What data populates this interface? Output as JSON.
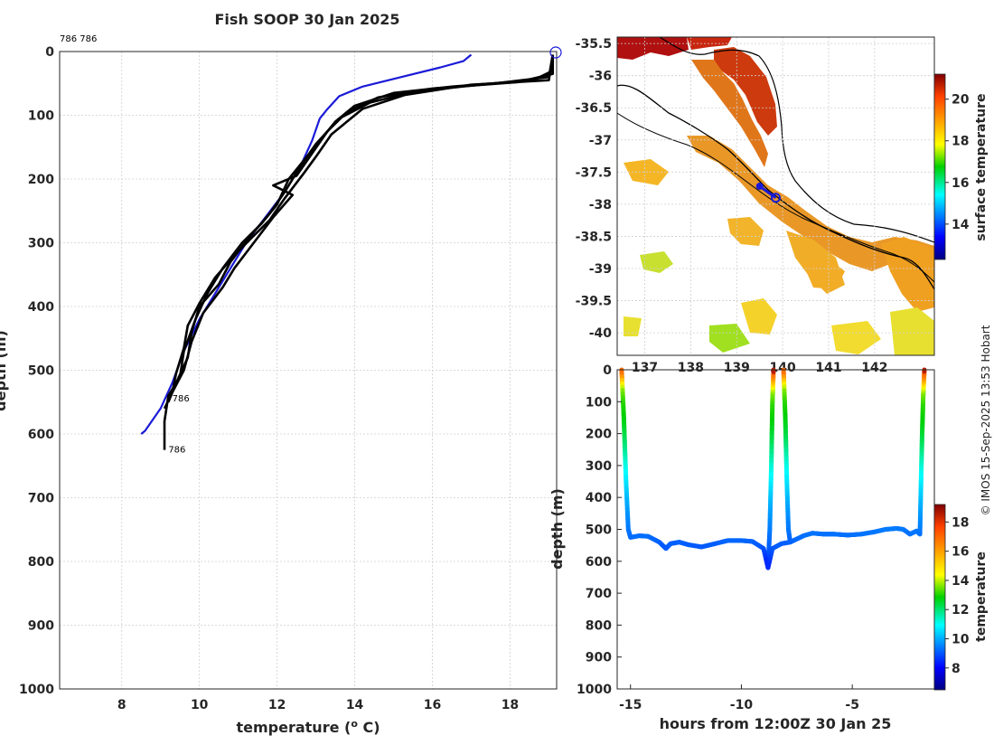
{
  "title": "Fish SOOP 30 Jan 2025",
  "watermark": "© IMOS 15-Sep-2025 13:53 Hobart",
  "colors": {
    "climatology": "#1a1ad8",
    "profiles": "#000000",
    "track": "#1a1ad8",
    "land_line": "#000000"
  },
  "chart_data": [
    {
      "id": "profile",
      "type": "line",
      "title": "Fish SOOP 30 Jan 2025",
      "xlabel": "temperature (° C)",
      "xlabel_parts": {
        "pre": "temperature (",
        "sup": "o",
        "post": " C)"
      },
      "ylabel": "depth (m)",
      "xlim": [
        6.4,
        19.2
      ],
      "ylim": [
        0,
        1000
      ],
      "xticks": [
        8,
        10,
        12,
        14,
        16,
        18
      ],
      "yticks": [
        0,
        100,
        200,
        300,
        400,
        500,
        600,
        700,
        800,
        900,
        1000
      ],
      "annotations": [
        {
          "text": "786 786",
          "x": 6.4,
          "y": -20
        },
        {
          "text": "786",
          "x": 9.3,
          "y": 545
        },
        {
          "text": "786",
          "x": 9.2,
          "y": 625
        }
      ],
      "series": [
        {
          "name": "climatology",
          "style": "blue",
          "points": [
            [
              17.0,
              5
            ],
            [
              16.8,
              15
            ],
            [
              16.2,
              25
            ],
            [
              15.2,
              40
            ],
            [
              14.2,
              55
            ],
            [
              13.6,
              70
            ],
            [
              13.3,
              90
            ],
            [
              13.1,
              105
            ],
            [
              12.9,
              140
            ],
            [
              12.6,
              180
            ],
            [
              12.2,
              220
            ],
            [
              11.7,
              260
            ],
            [
              11.2,
              300
            ],
            [
              10.8,
              340
            ],
            [
              10.4,
              380
            ],
            [
              10.0,
              420
            ],
            [
              9.6,
              470
            ],
            [
              9.3,
              520
            ],
            [
              9.0,
              560
            ],
            [
              8.6,
              595
            ],
            [
              8.5,
              600
            ]
          ]
        },
        {
          "name": "cast-1",
          "style": "black",
          "points": [
            [
              19.1,
              5
            ],
            [
              19.1,
              30
            ],
            [
              18.6,
              45
            ],
            [
              16.5,
              55
            ],
            [
              15.0,
              65
            ],
            [
              14.0,
              85
            ],
            [
              13.5,
              110
            ],
            [
              13.1,
              140
            ],
            [
              12.7,
              170
            ],
            [
              12.3,
              200
            ],
            [
              12.0,
              240
            ],
            [
              11.6,
              270
            ],
            [
              11.1,
              300
            ],
            [
              10.6,
              340
            ],
            [
              10.2,
              380
            ],
            [
              9.9,
              420
            ],
            [
              9.6,
              470
            ],
            [
              9.5,
              510
            ],
            [
              9.2,
              540
            ],
            [
              9.1,
              580
            ],
            [
              9.1,
              625
            ]
          ]
        },
        {
          "name": "cast-2",
          "style": "black",
          "points": [
            [
              19.1,
              5
            ],
            [
              19.1,
              35
            ],
            [
              18.2,
              48
            ],
            [
              16.0,
              58
            ],
            [
              14.6,
              72
            ],
            [
              13.8,
              95
            ],
            [
              13.3,
              125
            ],
            [
              12.9,
              160
            ],
            [
              12.5,
              195
            ],
            [
              11.9,
              210
            ],
            [
              12.4,
              225
            ],
            [
              11.9,
              260
            ],
            [
              11.4,
              300
            ],
            [
              10.9,
              340
            ],
            [
              10.6,
              370
            ],
            [
              10.1,
              410
            ],
            [
              9.8,
              455
            ],
            [
              9.6,
              500
            ],
            [
              9.3,
              535
            ],
            [
              9.1,
              560
            ]
          ]
        },
        {
          "name": "cast-3",
          "style": "black",
          "points": [
            [
              19.1,
              5
            ],
            [
              19.0,
              40
            ],
            [
              17.6,
              50
            ],
            [
              15.6,
              62
            ],
            [
              14.4,
              80
            ],
            [
              13.6,
              105
            ],
            [
              13.0,
              145
            ],
            [
              12.6,
              180
            ],
            [
              12.2,
              220
            ],
            [
              11.8,
              255
            ],
            [
              11.3,
              290
            ],
            [
              10.8,
              330
            ],
            [
              10.5,
              365
            ],
            [
              10.0,
              400
            ],
            [
              9.8,
              440
            ],
            [
              9.7,
              480
            ],
            [
              9.4,
              520
            ],
            [
              9.2,
              550
            ]
          ]
        },
        {
          "name": "cast-4",
          "style": "black",
          "points": [
            [
              19.1,
              5
            ],
            [
              19.0,
              45
            ],
            [
              17.0,
              52
            ],
            [
              15.3,
              68
            ],
            [
              14.2,
              90
            ],
            [
              13.4,
              130
            ],
            [
              13.0,
              165
            ],
            [
              12.7,
              190
            ],
            [
              12.2,
              230
            ],
            [
              11.8,
              265
            ],
            [
              11.3,
              295
            ],
            [
              10.9,
              320
            ],
            [
              10.4,
              355
            ],
            [
              10.0,
              395
            ],
            [
              9.7,
              430
            ],
            [
              9.6,
              465
            ],
            [
              9.4,
              505
            ],
            [
              9.3,
              535
            ]
          ]
        }
      ]
    },
    {
      "id": "sst-map",
      "type": "heatmap",
      "colorbar_label": "surface temperature",
      "colorbar_ticks": [
        14,
        16,
        18,
        20
      ],
      "clim": [
        12.3,
        21.2
      ],
      "ylim": [
        -40.35,
        -35.4
      ],
      "xlim": [
        136.4,
        143.3
      ],
      "yticks": [
        -35.5,
        -36,
        -36.5,
        -37,
        -37.5,
        -38,
        -38.5,
        -39,
        -39.5,
        -40
      ],
      "xticks": [
        137,
        138,
        139,
        140,
        141,
        142
      ],
      "xtick_labels": [
        "137",
        "138",
        "139",
        "140",
        "141",
        "142"
      ],
      "track": [
        [
          139.5,
          -37.72
        ],
        [
          139.85,
          -37.9
        ]
      ]
    },
    {
      "id": "depth-time",
      "type": "scatter",
      "xlabel": "hours from 12:00Z 30 Jan 25",
      "ylabel": "depth (m)",
      "xlim": [
        -15.6,
        -1.3
      ],
      "ylim": [
        0,
        1000
      ],
      "xticks": [
        -15,
        -10,
        -5
      ],
      "yticks": [
        0,
        100,
        200,
        300,
        400,
        500,
        600,
        700,
        800,
        900,
        1000
      ],
      "colorbar_label": "temperature",
      "colorbar_ticks": [
        8,
        10,
        12,
        14,
        16,
        18
      ],
      "clim": [
        6.5,
        19.2
      ],
      "casts": [
        {
          "t": [
            -15.4,
            -15.3,
            -15.2,
            -15.1,
            -15.0
          ],
          "d": [
            0,
            150,
            350,
            500,
            525
          ]
        },
        {
          "t": [
            -8.8,
            -8.72,
            -8.65,
            -8.6,
            -8.55
          ],
          "d": [
            620,
            500,
            300,
            100,
            0
          ]
        },
        {
          "t": [
            -8.1,
            -8.02,
            -7.95,
            -7.88,
            -7.8
          ],
          "d": [
            0,
            150,
            350,
            500,
            540
          ]
        },
        {
          "t": [
            -1.95,
            -1.9,
            -1.85,
            -1.8,
            -1.75
          ],
          "d": [
            515,
            350,
            200,
            80,
            0
          ]
        }
      ],
      "bottom_track": {
        "t": [
          -15.0,
          -14.6,
          -14.2,
          -13.7,
          -13.4,
          -13.2,
          -12.8,
          -12.4,
          -11.8,
          -11.2,
          -10.6,
          -10.0,
          -9.5,
          -9.0,
          -8.8,
          -8.6,
          -8.2,
          -7.8,
          -7.5,
          -7.2,
          -6.8,
          -6.3,
          -5.8,
          -5.2,
          -4.6,
          -4.0,
          -3.5,
          -3.0,
          -2.7,
          -2.4,
          -2.1,
          -1.95
        ],
        "d": [
          525,
          520,
          522,
          540,
          560,
          545,
          540,
          548,
          555,
          545,
          535,
          535,
          538,
          560,
          620,
          560,
          545,
          540,
          530,
          520,
          512,
          515,
          515,
          518,
          515,
          508,
          500,
          497,
          500,
          515,
          505,
          515
        ]
      }
    }
  ]
}
